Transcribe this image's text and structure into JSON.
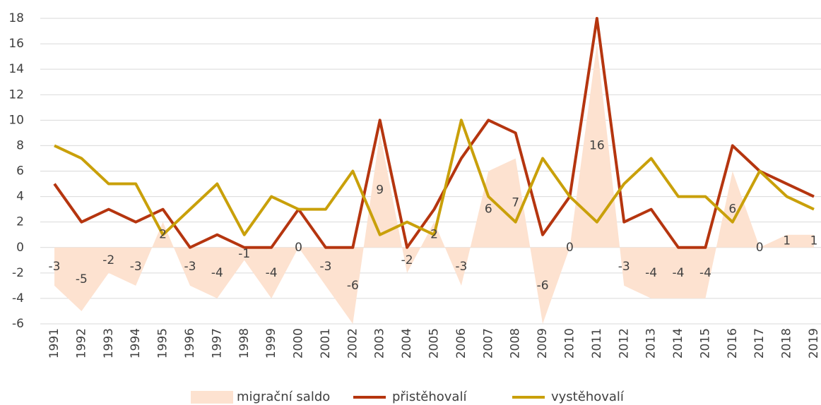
{
  "chart_data": {
    "type": "line",
    "categories": [
      "1991",
      "1992",
      "1993",
      "1994",
      "1995",
      "1996",
      "1997",
      "1998",
      "1999",
      "2000",
      "2001",
      "2002",
      "2003",
      "2004",
      "2005",
      "2006",
      "2007",
      "2008",
      "2009",
      "2010",
      "2011",
      "2012",
      "2013",
      "2014",
      "2015",
      "2016",
      "2017",
      "2018",
      "2019"
    ],
    "series": [
      {
        "name": "migrační saldo",
        "type": "area",
        "color": "#fde2d0",
        "data_labels": true,
        "values": [
          -3,
          -5,
          -2,
          -3,
          2,
          -3,
          -4,
          -1,
          -4,
          0,
          -3,
          -6,
          9,
          -2,
          2,
          -3,
          6,
          7,
          -6,
          0,
          16,
          -3,
          -4,
          -4,
          -4,
          6,
          0,
          1,
          1
        ]
      },
      {
        "name": "přistěhovalí",
        "type": "line",
        "color": "#b5350f",
        "values": [
          5,
          2,
          3,
          2,
          3,
          0,
          1,
          0,
          0,
          3,
          0,
          0,
          10,
          0,
          3,
          7,
          10,
          9,
          1,
          4,
          18,
          2,
          3,
          0,
          0,
          8,
          6,
          5,
          4
        ]
      },
      {
        "name": "vystěhovalí",
        "type": "line",
        "color": "#c9a00a",
        "values": [
          8,
          7,
          5,
          5,
          1,
          3,
          5,
          1,
          4,
          3,
          3,
          6,
          1,
          2,
          1,
          10,
          4,
          2,
          7,
          4,
          2,
          5,
          7,
          4,
          4,
          2,
          6,
          4,
          3
        ]
      }
    ],
    "ylim": [
      -6,
      18
    ],
    "yticks": [
      -6,
      -4,
      -2,
      0,
      2,
      4,
      6,
      8,
      10,
      12,
      14,
      16,
      18
    ],
    "grid": true,
    "legend": "bottom"
  }
}
